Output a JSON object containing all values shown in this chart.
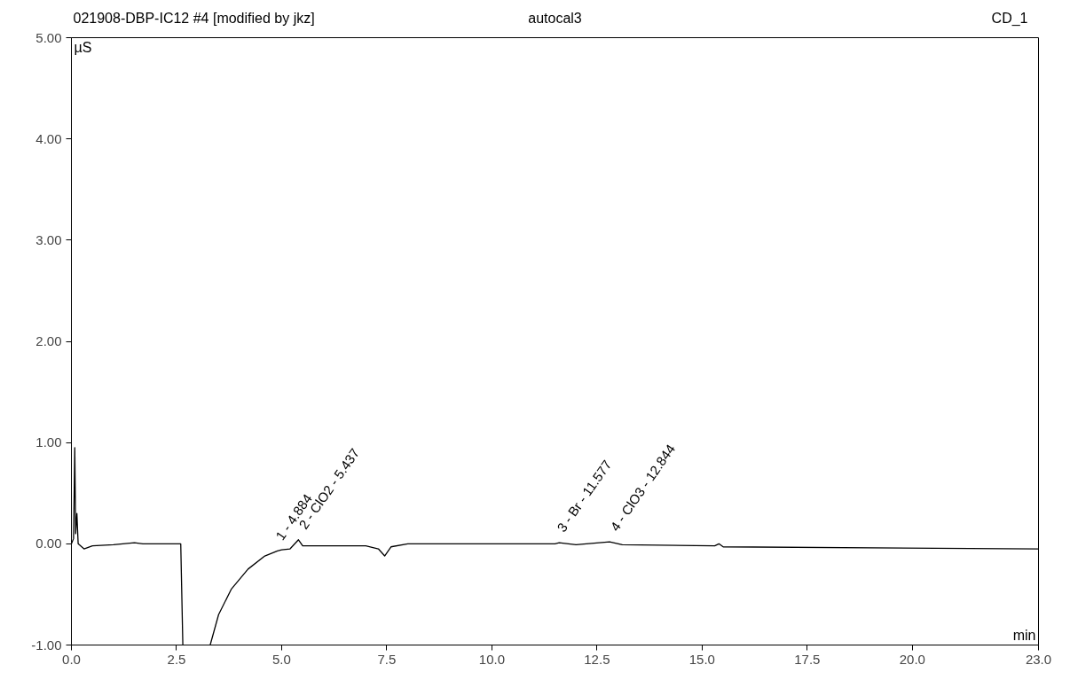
{
  "chart_data": {
    "type": "line",
    "title": "021908-DBP-IC12 #4 [modified by jkz]",
    "subtitle": "autocal3",
    "xlabel": "min",
    "ylabel": "µS",
    "annotations": [
      "CD_1",
      {
        "text": "1 - 4.884",
        "x": 4.884,
        "y": -0.07
      },
      {
        "text": "2 - ClO2 - 5.437",
        "x": 5.437,
        "y": 0.04
      },
      {
        "text": "3 - Br - 11.577",
        "x": 11.577,
        "y": 0.01
      },
      {
        "text": "4 - ClO3 - 12.844",
        "x": 12.844,
        "y": 0.02
      }
    ],
    "series": [
      {
        "color": "#000000",
        "x": [
          0,
          0.05,
          0.08,
          0.1,
          0.13,
          0.16,
          0.3,
          0.5,
          1.0,
          1.5,
          1.7,
          2.6,
          2.65,
          2.66,
          3.3,
          3.5,
          3.8,
          4.2,
          4.6,
          4.9,
          5.0,
          5.2,
          5.4,
          5.5,
          6.0,
          7.0,
          7.3,
          7.45,
          7.6,
          8.0,
          11.5,
          11.6,
          12.0,
          12.8,
          13.1,
          15.3,
          15.4,
          15.5,
          23.0
        ],
        "values": [
          0,
          0.05,
          0.95,
          0.1,
          0.3,
          0,
          -0.05,
          -0.02,
          -0.01,
          0.01,
          0,
          0,
          -1.0,
          null,
          -1.0,
          -0.7,
          -0.45,
          -0.25,
          -0.12,
          -0.07,
          -0.06,
          -0.05,
          0.04,
          -0.02,
          -0.02,
          -0.02,
          -0.05,
          -0.12,
          -0.03,
          0.0,
          0.0,
          0.01,
          -0.01,
          0.02,
          -0.01,
          -0.02,
          0.0,
          -0.03,
          -0.05
        ]
      }
    ],
    "xlim": [
      0,
      23.0
    ],
    "ylim": [
      -1.0,
      5.0
    ],
    "xticks": [
      {
        "value": 0,
        "label": "0.0"
      },
      {
        "value": 2.5,
        "label": "2.5"
      },
      {
        "value": 5,
        "label": "5.0"
      },
      {
        "value": 7.5,
        "label": "7.5"
      },
      {
        "value": 10,
        "label": "10.0"
      },
      {
        "value": 12.5,
        "label": "12.5"
      },
      {
        "value": 15,
        "label": "15.0"
      },
      {
        "value": 17.5,
        "label": "17.5"
      },
      {
        "value": 20,
        "label": "20.0"
      },
      {
        "value": 23,
        "label": "23.0"
      }
    ],
    "yticks": [
      {
        "value": -1,
        "label": "-1.00"
      },
      {
        "value": 0,
        "label": "0.00"
      },
      {
        "value": 1,
        "label": "1.00"
      },
      {
        "value": 2,
        "label": "2.00"
      },
      {
        "value": 3,
        "label": "3.00"
      },
      {
        "value": 4,
        "label": "4.00"
      },
      {
        "value": 5,
        "label": "5.00"
      }
    ],
    "grid": false
  }
}
